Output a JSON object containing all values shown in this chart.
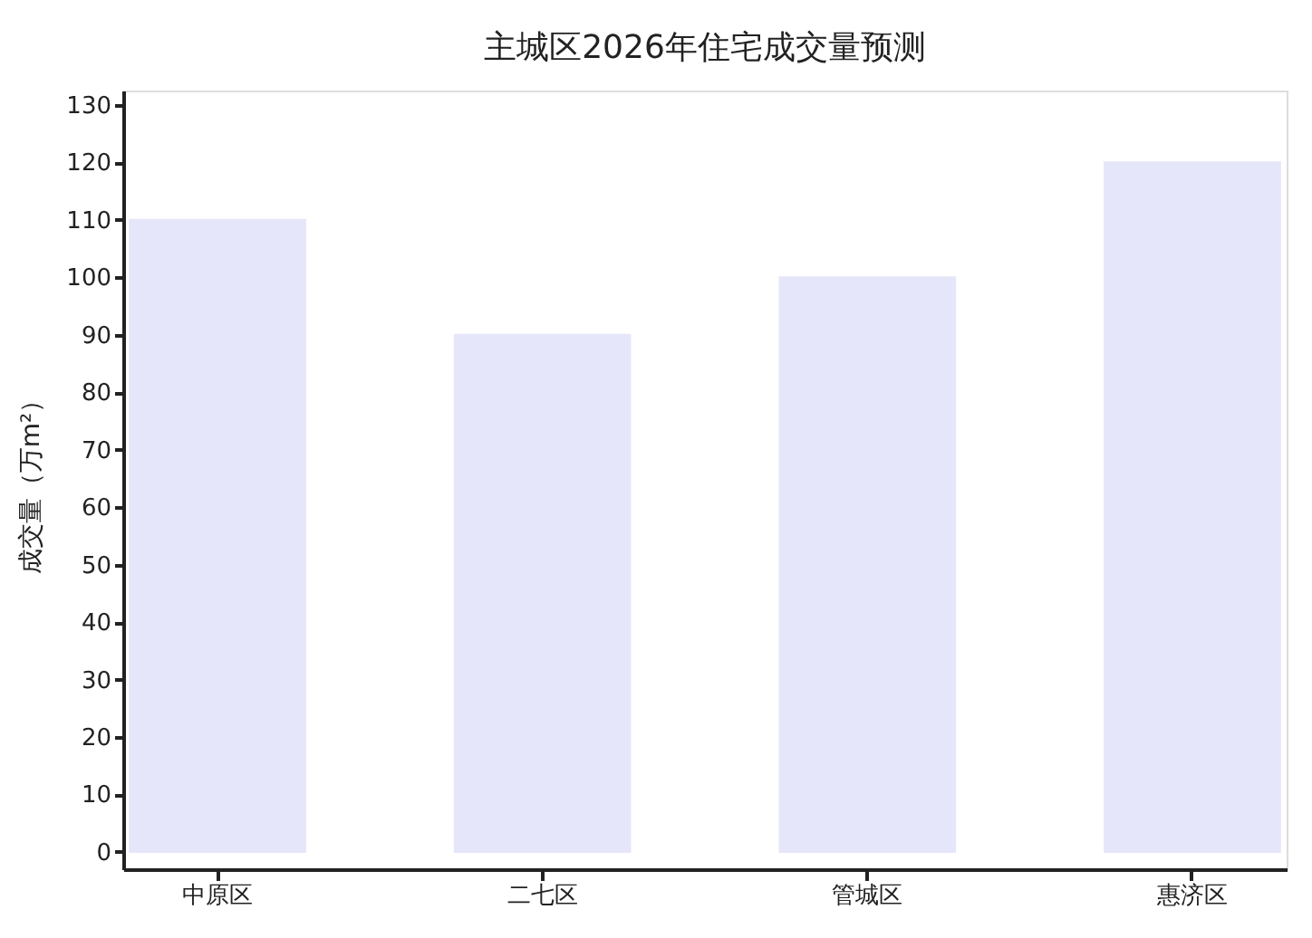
{
  "chart_data": {
    "type": "bar",
    "title": "主城区2026年住宅成交量预测",
    "ylabel": "成交量（万m²）",
    "categories": [
      "中原区",
      "二七区",
      "管城区",
      "惠济区"
    ],
    "values": [
      110,
      90,
      100,
      120
    ],
    "color": "#e6e6fa",
    "ylim": [
      -3,
      132.5
    ],
    "yticks": [
      0,
      10,
      20,
      30,
      40,
      50,
      60,
      70,
      80,
      90,
      100,
      110,
      120,
      130
    ],
    "grid": false
  }
}
